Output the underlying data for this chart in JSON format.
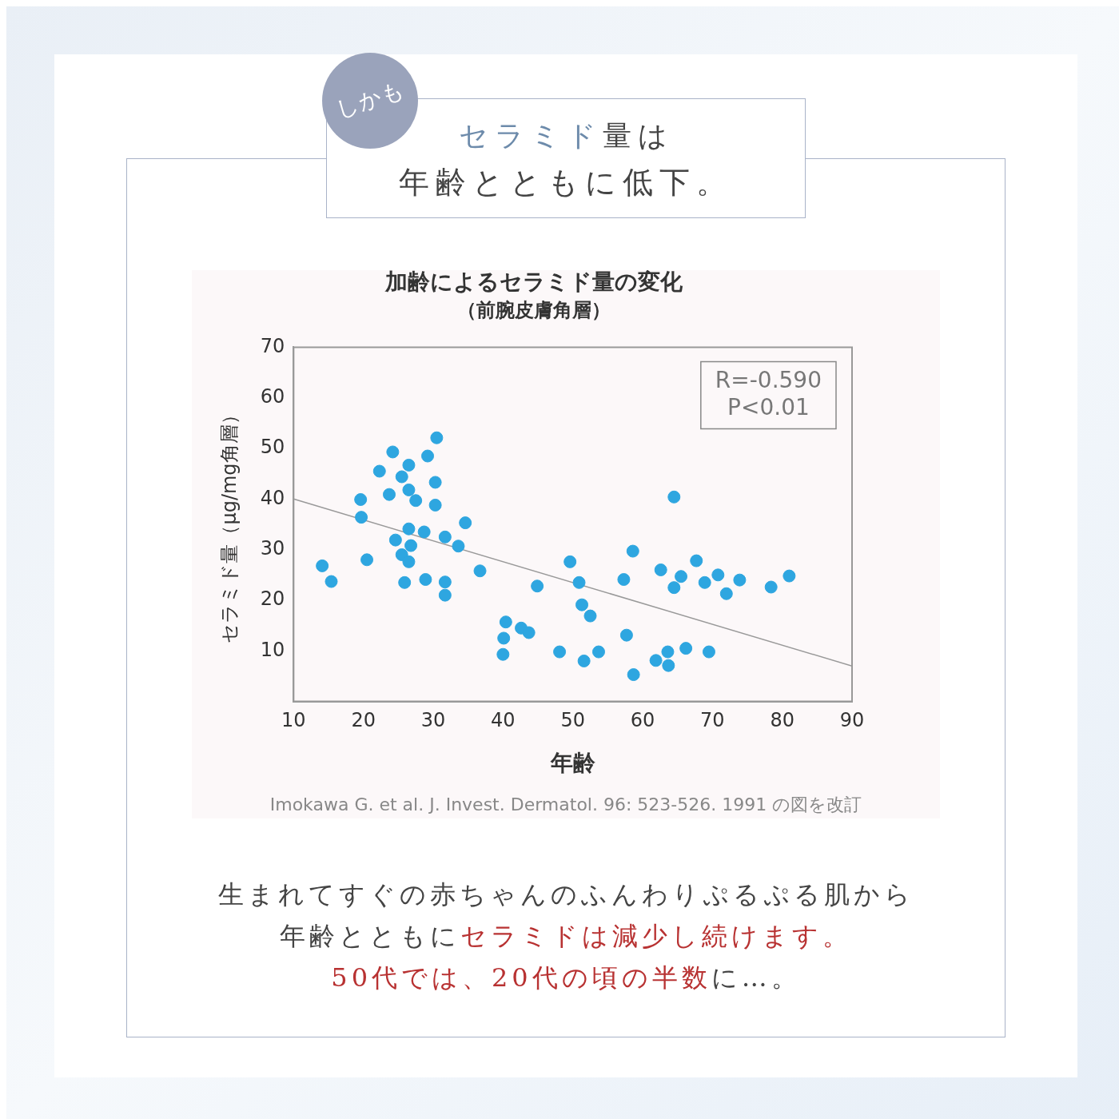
{
  "chart_data": {
    "type": "scatter",
    "title": "加齢によるセラミド量の変化",
    "subtitle": "（前腕皮膚角層）",
    "xlabel": "年齢",
    "ylabel": "セラミド量（μg/mg角層）",
    "annotations": [
      "しかも",
      "セラミド",
      "量は",
      "年齢とともに低下。",
      "R=-0.590",
      "P<0.01",
      "Imokawa G. et al. J. Invest. Dermatol. 96: 523-526. 1991 の図を改訂",
      "生まれてすぐの赤ちゃんのふんわりぷるぷる肌から",
      "年齢とともに",
      "セラミドは減少し続けます。",
      "50代では、20代の頃の半数",
      "に…。"
    ],
    "xlim": [
      10,
      90
    ],
    "xticks": [
      10,
      20,
      30,
      40,
      50,
      60,
      70,
      80,
      90
    ],
    "ylim": [
      0,
      70
    ],
    "yticks": [
      10,
      20,
      30,
      40,
      50,
      60,
      70
    ],
    "marker": "circle",
    "series": [
      {
        "type": "scatter",
        "color": "#2ea6e0",
        "x": [
          14.1,
          15.4,
          19.6,
          19.7,
          20.5,
          22.3,
          24.2,
          23.7,
          25.5,
          26.5,
          26.5,
          27.5,
          29.2,
          30.5,
          30.3,
          30.3,
          26.5,
          28.7,
          24.6,
          26.8,
          25.5,
          26.5,
          25.9,
          28.9,
          31.7,
          31.7,
          31.7,
          34.6,
          33.6,
          36.7,
          44.9,
          40.4,
          40.1,
          40.0,
          42.6,
          43.7,
          48.1,
          49.6,
          50.9,
          51.3,
          52.5,
          51.6,
          53.7,
          57.3,
          58.6,
          57.7,
          58.7,
          64.5,
          62.6,
          65.5,
          64.5,
          67.7,
          68.9,
          70.8,
          72.0,
          73.9,
          78.4,
          81.0,
          61.9,
          63.6,
          63.7,
          66.2,
          69.5
        ],
        "values": [
          26.8,
          23.7,
          39.9,
          36.4,
          28.0,
          45.5,
          49.3,
          40.9,
          44.4,
          46.7,
          41.8,
          39.7,
          48.5,
          52.1,
          43.3,
          38.8,
          34.1,
          33.5,
          31.9,
          30.8,
          29.0,
          27.6,
          23.5,
          24.1,
          32.5,
          23.6,
          21.0,
          35.3,
          30.7,
          25.8,
          22.8,
          15.7,
          12.5,
          9.3,
          14.5,
          13.6,
          9.8,
          27.6,
          23.5,
          19.1,
          16.9,
          8.0,
          9.8,
          24.1,
          29.7,
          13.1,
          5.3,
          40.4,
          26.0,
          24.7,
          22.5,
          27.8,
          23.5,
          25.0,
          21.3,
          24.0,
          22.6,
          24.8,
          8.1,
          9.8,
          7.1,
          10.5,
          9.8
        ]
      },
      {
        "type": "line",
        "color": "#999999",
        "marker": "none",
        "x": [
          10,
          90
        ],
        "values": [
          40,
          7
        ]
      }
    ]
  }
}
